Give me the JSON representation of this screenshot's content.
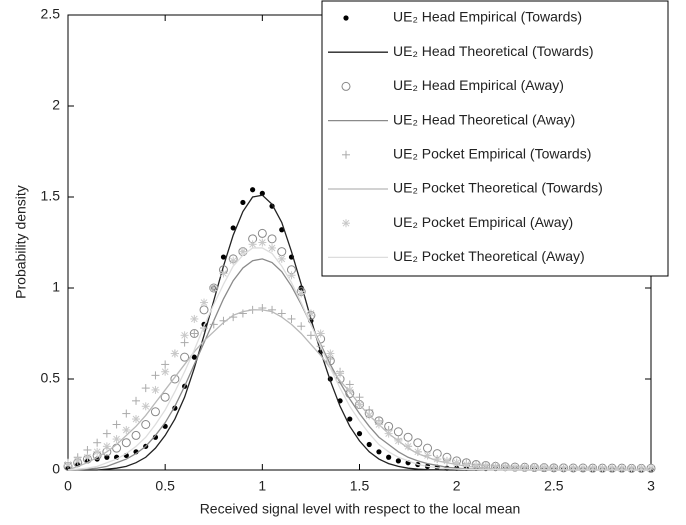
{
  "chart_data": {
    "type": "line",
    "xlabel": "Received signal level with respect to the local mean",
    "ylabel": "Probability density",
    "xlim": [
      0,
      3
    ],
    "ylim": [
      0,
      2.5
    ],
    "xticks": [
      0,
      0.5,
      1,
      1.5,
      2,
      2.5,
      3
    ],
    "yticks": [
      0,
      0.5,
      1,
      1.5,
      2,
      2.5
    ],
    "legend": "upper right",
    "x": [
      0,
      0.05,
      0.1,
      0.15,
      0.2,
      0.25,
      0.3,
      0.35,
      0.4,
      0.45,
      0.5,
      0.55,
      0.6,
      0.65,
      0.7,
      0.75,
      0.8,
      0.85,
      0.9,
      0.95,
      1,
      1.05,
      1.1,
      1.15,
      1.2,
      1.25,
      1.3,
      1.35,
      1.4,
      1.45,
      1.5,
      1.55,
      1.6,
      1.65,
      1.7,
      1.75,
      1.8,
      1.85,
      1.9,
      1.95,
      2,
      2.05,
      2.1,
      2.15,
      2.2,
      2.25,
      2.3,
      2.35,
      2.4,
      2.45,
      2.5,
      2.55,
      2.6,
      2.65,
      2.7,
      2.75,
      2.8,
      2.85,
      2.9,
      2.95,
      3
    ],
    "series": [
      {
        "name": "UE₂ Head Empirical (Towards)",
        "style": "dot",
        "color": "#000000",
        "values": [
          0.01,
          0.03,
          0.05,
          0.06,
          0.07,
          0.07,
          0.08,
          0.1,
          0.13,
          0.18,
          0.24,
          0.34,
          0.46,
          0.62,
          0.8,
          1.0,
          1.17,
          1.33,
          1.47,
          1.54,
          1.52,
          1.45,
          1.32,
          1.17,
          1.0,
          0.82,
          0.65,
          0.5,
          0.38,
          0.28,
          0.2,
          0.14,
          0.1,
          0.07,
          0.05,
          0.04,
          0.03,
          0.02,
          0.015,
          0.01,
          0.01,
          0.01,
          0.01,
          0.008,
          0.008,
          0.008,
          0.006,
          0.006,
          0.006,
          0.005,
          0.005,
          0.005,
          0.005,
          0.005,
          0.004,
          0.004,
          0.004,
          0.004,
          0.004,
          0.003,
          0.003
        ]
      },
      {
        "name": "UE₂ Head Theoretical (Towards)",
        "style": "line",
        "color": "#222222",
        "values": [
          0,
          0,
          0,
          0,
          0.005,
          0.01,
          0.02,
          0.04,
          0.07,
          0.12,
          0.19,
          0.28,
          0.4,
          0.56,
          0.74,
          0.93,
          1.12,
          1.29,
          1.42,
          1.5,
          1.51,
          1.46,
          1.36,
          1.2,
          1.02,
          0.83,
          0.65,
          0.49,
          0.35,
          0.24,
          0.16,
          0.1,
          0.06,
          0.035,
          0.02,
          0.01,
          0.005,
          0.002,
          0.001,
          0,
          0,
          0,
          0,
          0,
          0,
          0,
          0,
          0,
          0,
          0,
          0,
          0,
          0,
          0,
          0,
          0,
          0,
          0,
          0,
          0,
          0
        ]
      },
      {
        "name": "UE₂ Head Empirical (Away)",
        "style": "circle",
        "color": "#888888",
        "values": [
          0.02,
          0.04,
          0.06,
          0.08,
          0.1,
          0.12,
          0.15,
          0.19,
          0.25,
          0.32,
          0.4,
          0.5,
          0.62,
          0.75,
          0.88,
          1.0,
          1.1,
          1.16,
          1.2,
          1.27,
          1.3,
          1.27,
          1.2,
          1.1,
          0.98,
          0.85,
          0.72,
          0.6,
          0.5,
          0.42,
          0.36,
          0.31,
          0.27,
          0.24,
          0.21,
          0.18,
          0.15,
          0.12,
          0.09,
          0.07,
          0.05,
          0.04,
          0.03,
          0.025,
          0.02,
          0.018,
          0.016,
          0.015,
          0.014,
          0.013,
          0.012,
          0.012,
          0.011,
          0.011,
          0.01,
          0.01,
          0.01,
          0.01,
          0.009,
          0.009,
          0.009
        ]
      },
      {
        "name": "UE₂ Head Theoretical (Away)",
        "style": "line",
        "color": "#8a8a8a",
        "values": [
          0,
          0.001,
          0.005,
          0.01,
          0.02,
          0.04,
          0.06,
          0.09,
          0.13,
          0.19,
          0.26,
          0.35,
          0.46,
          0.58,
          0.7,
          0.82,
          0.94,
          1.04,
          1.11,
          1.15,
          1.16,
          1.14,
          1.09,
          1.01,
          0.91,
          0.8,
          0.69,
          0.58,
          0.48,
          0.39,
          0.31,
          0.24,
          0.18,
          0.14,
          0.1,
          0.07,
          0.05,
          0.035,
          0.025,
          0.015,
          0.01,
          0.007,
          0.005,
          0.003,
          0.002,
          0.001,
          0.001,
          0,
          0,
          0,
          0,
          0,
          0,
          0,
          0,
          0,
          0,
          0,
          0,
          0,
          0
        ]
      },
      {
        "name": "UE₂ Pocket Empirical (Towards)",
        "style": "plus",
        "color": "#aaaaaa",
        "values": [
          0.04,
          0.07,
          0.11,
          0.15,
          0.2,
          0.25,
          0.31,
          0.38,
          0.45,
          0.52,
          0.58,
          0.64,
          0.7,
          0.75,
          0.78,
          0.8,
          0.82,
          0.84,
          0.86,
          0.88,
          0.89,
          0.88,
          0.86,
          0.83,
          0.79,
          0.74,
          0.68,
          0.61,
          0.54,
          0.47,
          0.4,
          0.33,
          0.27,
          0.22,
          0.17,
          0.13,
          0.1,
          0.08,
          0.06,
          0.05,
          0.04,
          0.035,
          0.03,
          0.027,
          0.024,
          0.022,
          0.02,
          0.018,
          0.017,
          0.016,
          0.015,
          0.014,
          0.013,
          0.012,
          0.012,
          0.011,
          0.011,
          0.01,
          0.01,
          0.01,
          0.01
        ]
      },
      {
        "name": "UE₂ Pocket Theoretical (Towards)",
        "style": "line",
        "color": "#b8b8b8",
        "values": [
          0,
          0.02,
          0.04,
          0.07,
          0.1,
          0.14,
          0.19,
          0.24,
          0.3,
          0.37,
          0.44,
          0.51,
          0.58,
          0.65,
          0.71,
          0.76,
          0.81,
          0.85,
          0.87,
          0.88,
          0.88,
          0.87,
          0.84,
          0.8,
          0.75,
          0.69,
          0.63,
          0.56,
          0.49,
          0.43,
          0.36,
          0.3,
          0.25,
          0.2,
          0.16,
          0.12,
          0.09,
          0.07,
          0.05,
          0.04,
          0.03,
          0.02,
          0.015,
          0.01,
          0.007,
          0.005,
          0.003,
          0.002,
          0.001,
          0.001,
          0,
          0,
          0,
          0,
          0,
          0,
          0,
          0,
          0,
          0,
          0
        ]
      },
      {
        "name": "UE₂ Pocket Empirical (Away)",
        "style": "star",
        "color": "#c8c8c8",
        "values": [
          0.03,
          0.05,
          0.07,
          0.1,
          0.13,
          0.17,
          0.22,
          0.28,
          0.35,
          0.44,
          0.54,
          0.64,
          0.74,
          0.83,
          0.92,
          1.0,
          1.08,
          1.15,
          1.2,
          1.24,
          1.25,
          1.22,
          1.16,
          1.07,
          0.97,
          0.86,
          0.75,
          0.64,
          0.53,
          0.44,
          0.36,
          0.3,
          0.25,
          0.2,
          0.16,
          0.13,
          0.1,
          0.08,
          0.06,
          0.05,
          0.04,
          0.03,
          0.025,
          0.022,
          0.02,
          0.018,
          0.016,
          0.015,
          0.014,
          0.013,
          0.012,
          0.012,
          0.011,
          0.011,
          0.01,
          0.01,
          0.01,
          0.01,
          0.01,
          0.01,
          0.01
        ]
      },
      {
        "name": "UE₂ Pocket Theoretical (Away)",
        "style": "line",
        "color": "#dddddd",
        "values": [
          0,
          0.005,
          0.01,
          0.02,
          0.04,
          0.06,
          0.09,
          0.13,
          0.18,
          0.25,
          0.33,
          0.43,
          0.54,
          0.66,
          0.79,
          0.91,
          1.02,
          1.12,
          1.18,
          1.22,
          1.22,
          1.19,
          1.12,
          1.03,
          0.92,
          0.8,
          0.68,
          0.56,
          0.45,
          0.35,
          0.27,
          0.2,
          0.14,
          0.1,
          0.07,
          0.05,
          0.03,
          0.02,
          0.012,
          0.008,
          0.005,
          0.003,
          0.002,
          0.001,
          0.001,
          0,
          0,
          0,
          0,
          0,
          0,
          0,
          0,
          0,
          0,
          0,
          0,
          0,
          0,
          0,
          0
        ]
      }
    ]
  }
}
